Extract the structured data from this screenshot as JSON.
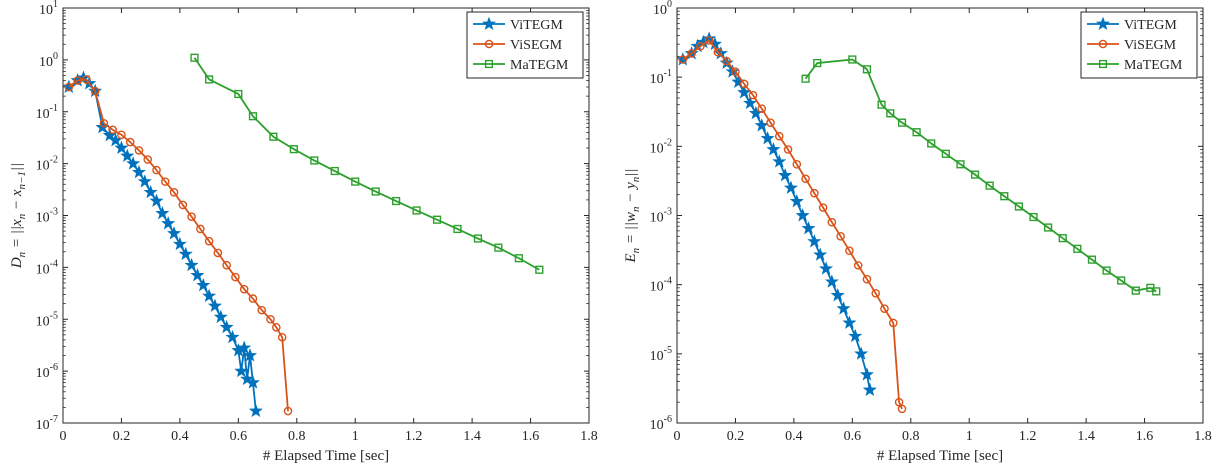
{
  "chart_data": [
    {
      "type": "line",
      "xlabel": "# Elapsed Time [sec]",
      "ylabel_math": "Dn = ||xn − xn−1||",
      "ylabel_parts": {
        "base": "D",
        "base_sub": "n",
        "mid": " = ||x",
        "mid_sub": "n",
        "mid2": " − x",
        "mid2_sub": "n−1",
        "end": "||"
      },
      "xlim": [
        0,
        1.8
      ],
      "ylim": [
        1e-07,
        10
      ],
      "yscale": "log",
      "xticks": [
        "0",
        "0.2",
        "0.4",
        "0.6",
        "0.8",
        "1",
        "1.2",
        "1.4",
        "1.6",
        "1.8"
      ],
      "ytick_exponents": [
        "1",
        "0",
        "-1",
        "-2",
        "-3",
        "-4",
        "-5",
        "-6",
        "-7"
      ],
      "ytick_base": "10",
      "legend_position": "top-right",
      "series": [
        {
          "name": "ViTEGM",
          "color": "#0072BD",
          "marker": "star",
          "x": [
            0.02,
            0.05,
            0.07,
            0.09,
            0.11,
            0.135,
            0.16,
            0.18,
            0.2,
            0.22,
            0.24,
            0.26,
            0.28,
            0.3,
            0.32,
            0.34,
            0.36,
            0.38,
            0.4,
            0.42,
            0.44,
            0.46,
            0.48,
            0.5,
            0.52,
            0.54,
            0.56,
            0.58,
            0.6,
            0.61,
            0.62,
            0.63,
            0.64,
            0.65,
            0.66
          ],
          "y": [
            0.3,
            0.4,
            0.45,
            0.35,
            0.25,
            0.05,
            0.035,
            0.028,
            0.02,
            0.014,
            0.01,
            0.0068,
            0.0045,
            0.0028,
            0.0019,
            0.0011,
            0.0007,
            0.00045,
            0.00028,
            0.00018,
            0.00011,
            7e-05,
            4.5e-05,
            2.8e-05,
            1.8e-05,
            1.1e-05,
            7e-06,
            4.5e-06,
            2.5e-06,
            1e-06,
            2.8e-06,
            7e-07,
            2e-06,
            6e-07,
            1.7e-07
          ]
        },
        {
          "name": "ViSEGM",
          "color": "#D95319",
          "marker": "circle",
          "x": [
            0.02,
            0.05,
            0.08,
            0.11,
            0.14,
            0.17,
            0.2,
            0.23,
            0.26,
            0.29,
            0.32,
            0.35,
            0.38,
            0.41,
            0.44,
            0.47,
            0.5,
            0.53,
            0.56,
            0.59,
            0.62,
            0.65,
            0.68,
            0.71,
            0.73,
            0.75,
            0.77
          ],
          "y": [
            0.3,
            0.4,
            0.42,
            0.25,
            0.06,
            0.045,
            0.036,
            0.026,
            0.018,
            0.012,
            0.0075,
            0.0045,
            0.0028,
            0.0016,
            0.00095,
            0.00055,
            0.00032,
            0.00019,
            0.00011,
            6.5e-05,
            3.8e-05,
            2.5e-05,
            1.5e-05,
            1e-05,
            7e-06,
            4.5e-06,
            1.7e-07
          ]
        },
        {
          "name": "MaTEGM",
          "color": "#2CA02C",
          "marker": "square",
          "x": [
            0.45,
            0.5,
            0.6,
            0.65,
            0.72,
            0.79,
            0.86,
            0.93,
            1.0,
            1.07,
            1.14,
            1.21,
            1.28,
            1.35,
            1.42,
            1.49,
            1.56,
            1.63
          ],
          "y": [
            1.1,
            0.42,
            0.22,
            0.082,
            0.033,
            0.019,
            0.0115,
            0.0072,
            0.0045,
            0.0029,
            0.0019,
            0.00125,
            0.00083,
            0.00055,
            0.00036,
            0.00024,
            0.00015,
            9e-05
          ]
        }
      ]
    },
    {
      "type": "line",
      "xlabel": "# Elapsed Time [sec]",
      "ylabel_math": "En = ||wn − yn||",
      "ylabel_parts": {
        "base": "E",
        "base_sub": "n",
        "mid": " = ||w",
        "mid_sub": "n",
        "mid2": " − y",
        "mid2_sub": "n",
        "end": "||"
      },
      "xlim": [
        0,
        1.8
      ],
      "ylim": [
        1e-06,
        1
      ],
      "yscale": "log",
      "xticks": [
        "0",
        "0.2",
        "0.4",
        "0.6",
        "0.8",
        "1",
        "1.2",
        "1.4",
        "1.6",
        "1.8"
      ],
      "ytick_exponents": [
        "0",
        "-1",
        "-2",
        "-3",
        "-4",
        "-5",
        "-6"
      ],
      "ytick_base": "10",
      "legend_position": "top-right",
      "series": [
        {
          "name": "ViTEGM",
          "color": "#0072BD",
          "marker": "star",
          "x": [
            0.02,
            0.05,
            0.07,
            0.09,
            0.11,
            0.13,
            0.15,
            0.17,
            0.19,
            0.21,
            0.23,
            0.25,
            0.27,
            0.29,
            0.31,
            0.33,
            0.35,
            0.37,
            0.39,
            0.41,
            0.43,
            0.45,
            0.47,
            0.49,
            0.51,
            0.53,
            0.55,
            0.57,
            0.59,
            0.61,
            0.63,
            0.65,
            0.66
          ],
          "y": [
            0.18,
            0.22,
            0.28,
            0.32,
            0.36,
            0.3,
            0.22,
            0.16,
            0.12,
            0.085,
            0.06,
            0.042,
            0.03,
            0.02,
            0.013,
            0.009,
            0.006,
            0.0038,
            0.0025,
            0.0016,
            0.001,
            0.00065,
            0.00042,
            0.00027,
            0.00017,
            0.00011,
            7e-05,
            4.5e-05,
            2.8e-05,
            1.8e-05,
            1e-05,
            5e-06,
            3e-06
          ]
        },
        {
          "name": "ViSEGM",
          "color": "#D95319",
          "marker": "circle",
          "x": [
            0.02,
            0.05,
            0.08,
            0.11,
            0.14,
            0.17,
            0.2,
            0.23,
            0.26,
            0.29,
            0.32,
            0.35,
            0.38,
            0.41,
            0.44,
            0.47,
            0.5,
            0.53,
            0.56,
            0.59,
            0.62,
            0.65,
            0.68,
            0.71,
            0.74,
            0.76,
            0.77
          ],
          "y": [
            0.18,
            0.22,
            0.28,
            0.34,
            0.23,
            0.17,
            0.12,
            0.08,
            0.055,
            0.035,
            0.022,
            0.014,
            0.009,
            0.0055,
            0.0034,
            0.0021,
            0.0013,
            0.0008,
            0.0005,
            0.00031,
            0.00019,
            0.00012,
            7.5e-05,
            4.5e-05,
            2.8e-05,
            2e-06,
            1.6e-06
          ]
        },
        {
          "name": "MaTEGM",
          "color": "#2CA02C",
          "marker": "square",
          "x": [
            0.44,
            0.48,
            0.6,
            0.65,
            0.7,
            0.73,
            0.77,
            0.82,
            0.87,
            0.92,
            0.97,
            1.02,
            1.07,
            1.12,
            1.17,
            1.22,
            1.27,
            1.32,
            1.37,
            1.42,
            1.47,
            1.52,
            1.57,
            1.62,
            1.64
          ],
          "y": [
            0.095,
            0.16,
            0.18,
            0.13,
            0.04,
            0.03,
            0.022,
            0.016,
            0.011,
            0.0078,
            0.0055,
            0.0039,
            0.0027,
            0.0019,
            0.00135,
            0.00095,
            0.00067,
            0.00047,
            0.00033,
            0.00023,
            0.00016,
            0.000115,
            8.2e-05,
            9e-05,
            8e-05
          ]
        }
      ]
    }
  ]
}
